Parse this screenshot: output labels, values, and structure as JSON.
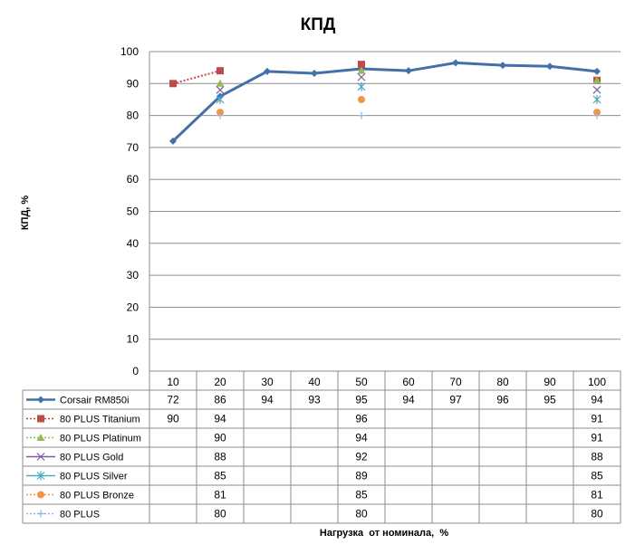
{
  "chart_data": {
    "type": "line",
    "title": "КПД",
    "xlabel": "Нагрузка  от номинала,  %",
    "ylabel": "КПД, %",
    "ylim": [
      0,
      100
    ],
    "yticks": [
      0,
      10,
      20,
      30,
      40,
      50,
      60,
      70,
      80,
      90,
      100
    ],
    "grid": true,
    "legend": "data-table",
    "categories": [
      "10",
      "20",
      "30",
      "40",
      "50",
      "60",
      "70",
      "80",
      "90",
      "100"
    ],
    "series": [
      {
        "name": "Corsair RM850i",
        "color": "#4470a8",
        "marker": "diamond",
        "style": "solid",
        "values": [
          72,
          86,
          94,
          93,
          95,
          94,
          97,
          96,
          95,
          94
        ],
        "plot_values": [
          72.0,
          86.0,
          93.8,
          93.2,
          94.6,
          94.0,
          96.5,
          95.7,
          95.4,
          93.8
        ]
      },
      {
        "name": "80 PLUS Titanium",
        "color": "#be4b48",
        "marker": "square",
        "style": "dotted",
        "values": [
          90,
          94,
          null,
          null,
          96,
          null,
          null,
          null,
          null,
          91
        ]
      },
      {
        "name": "80 PLUS Platinum",
        "color": "#98b954",
        "marker": "triangle",
        "style": "dotted",
        "values": [
          null,
          90,
          null,
          null,
          94,
          null,
          null,
          null,
          null,
          91
        ]
      },
      {
        "name": "80 PLUS Gold",
        "color": "#7d5fa0",
        "marker": "x",
        "style": "solid",
        "values": [
          null,
          88,
          null,
          null,
          92,
          null,
          null,
          null,
          null,
          88
        ]
      },
      {
        "name": "80 PLUS Silver",
        "color": "#46aac5",
        "marker": "star",
        "style": "solid",
        "values": [
          null,
          85,
          null,
          null,
          89,
          null,
          null,
          null,
          null,
          85
        ]
      },
      {
        "name": "80 PLUS Bronze",
        "color": "#f69240",
        "marker": "circle",
        "style": "dotted",
        "values": [
          null,
          81,
          null,
          null,
          85,
          null,
          null,
          null,
          null,
          81
        ]
      },
      {
        "name": "80 PLUS",
        "color": "#8eb4e3",
        "marker": "plus",
        "style": "dotted",
        "values": [
          null,
          80,
          null,
          null,
          80,
          null,
          null,
          null,
          null,
          80
        ]
      }
    ]
  }
}
